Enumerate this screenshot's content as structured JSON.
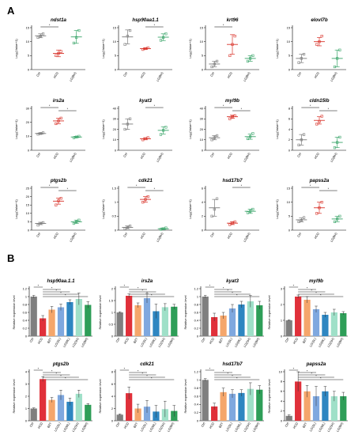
{
  "figure": {
    "panel_a_label": "A",
    "panel_b_label": "B"
  },
  "chart_data": [
    {
      "type": "scatter",
      "panel": "A",
      "title": "ndst1a",
      "ylabel": "Log₂(Value+1)",
      "categories": [
        "Ctrl",
        "HCD",
        "LG(BH)"
      ],
      "ylim": [
        0,
        15
      ],
      "yticks": [
        0,
        5,
        10,
        15
      ],
      "colors": [
        "#7a7a7a",
        "#d9342b",
        "#3aa56a"
      ],
      "points": [
        [
          11.5,
          12,
          12.8
        ],
        [
          5,
          5.8,
          6.5
        ],
        [
          9.5,
          11.5,
          14
        ]
      ],
      "means": [
        12.1,
        5.8,
        11.7
      ],
      "errors": [
        0.7,
        1.2,
        2.3
      ],
      "significance": [
        {
          "from": 0,
          "to": 1,
          "label": "*"
        }
      ]
    },
    {
      "type": "scatter",
      "panel": "A",
      "title": "hsp90aa1.1",
      "ylabel": "Log₂(Value+1)",
      "categories": [
        "Ctrl",
        "HCD",
        "LG(BH)"
      ],
      "ylim": [
        0,
        15
      ],
      "yticks": [
        0,
        5,
        10,
        15
      ],
      "colors": [
        "#7a7a7a",
        "#d9342b",
        "#3aa56a"
      ],
      "points": [
        [
          9,
          12,
          14
        ],
        [
          7.2,
          7.5,
          7.8
        ],
        [
          10.5,
          11.5,
          12.8
        ]
      ],
      "means": [
        11.7,
        7.5,
        11.6
      ],
      "errors": [
        2.5,
        0.3,
        1.2
      ],
      "significance": [
        {
          "from": 1,
          "to": 2,
          "label": "*"
        }
      ]
    },
    {
      "type": "scatter",
      "panel": "A",
      "title": "krt96",
      "ylabel": "Log₂(Value+1)",
      "categories": [
        "Ctrl",
        "HCD",
        "LG(BH)"
      ],
      "ylim": [
        0,
        15
      ],
      "yticks": [
        0,
        5,
        10,
        15
      ],
      "colors": [
        "#7a7a7a",
        "#d9342b",
        "#3aa56a"
      ],
      "points": [
        [
          1,
          2,
          3
        ],
        [
          5,
          9,
          12
        ],
        [
          3,
          4,
          5
        ]
      ],
      "means": [
        2,
        9,
        4
      ],
      "errors": [
        1,
        3.5,
        1
      ],
      "significance": [
        {
          "from": 0,
          "to": 1,
          "label": "*"
        }
      ]
    },
    {
      "type": "scatter",
      "panel": "A",
      "title": "elovl7b",
      "ylabel": "Log₂(Value+1)",
      "categories": [
        "Ctrl",
        "HCD",
        "LG(BH)"
      ],
      "ylim": [
        0,
        15
      ],
      "yticks": [
        0,
        5,
        10,
        15
      ],
      "colors": [
        "#7a7a7a",
        "#d9342b",
        "#3aa56a"
      ],
      "points": [
        [
          2.5,
          4,
          5.5
        ],
        [
          9,
          10,
          12
        ],
        [
          1,
          4,
          7
        ]
      ],
      "means": [
        4,
        10,
        4
      ],
      "errors": [
        1.5,
        1.5,
        3
      ],
      "significance": []
    },
    {
      "type": "scatter",
      "panel": "A",
      "title": "irs2a",
      "ylabel": "Log₂(Value+1)",
      "categories": [
        "Ctrl",
        "HCD",
        "LG(BH)"
      ],
      "ylim": [
        0,
        30
      ],
      "yticks": [
        0,
        10,
        20,
        30
      ],
      "colors": [
        "#7a7a7a",
        "#d9342b",
        "#3aa56a"
      ],
      "points": [
        [
          11.5,
          12,
          12.5
        ],
        [
          19,
          21,
          23
        ],
        [
          9,
          9.5,
          10
        ]
      ],
      "means": [
        12,
        21,
        9.5
      ],
      "errors": [
        0.5,
        2,
        0.5
      ],
      "significance": [
        {
          "from": 0,
          "to": 1,
          "label": "*"
        },
        {
          "from": 1,
          "to": 2,
          "label": "*"
        }
      ]
    },
    {
      "type": "scatter",
      "panel": "A",
      "title": "kyat3",
      "ylabel": "Log₂(Value+1)",
      "categories": [
        "Ctrl",
        "HCD",
        "LG(BH)"
      ],
      "ylim": [
        0,
        40
      ],
      "yticks": [
        0,
        10,
        20,
        30,
        40
      ],
      "colors": [
        "#7a7a7a",
        "#d9342b",
        "#3aa56a"
      ],
      "points": [
        [
          20,
          25,
          30
        ],
        [
          10,
          11,
          12
        ],
        [
          15,
          19,
          22
        ]
      ],
      "means": [
        25,
        11,
        19
      ],
      "errors": [
        5,
        1,
        3.5
      ],
      "significance": [
        {
          "from": 1,
          "to": 2,
          "label": "*"
        }
      ]
    },
    {
      "type": "scatter",
      "panel": "A",
      "title": "myl9b",
      "ylabel": "Log₂(Value+1)",
      "categories": [
        "Ctrl",
        "HCD",
        "LG(BH)"
      ],
      "ylim": [
        0,
        40
      ],
      "yticks": [
        0,
        10,
        20,
        30,
        40
      ],
      "colors": [
        "#7a7a7a",
        "#d9342b",
        "#3aa56a"
      ],
      "points": [
        [
          10,
          12,
          14
        ],
        [
          30,
          32,
          33
        ],
        [
          11,
          13,
          16
        ]
      ],
      "means": [
        12,
        32,
        13
      ],
      "errors": [
        2,
        1.5,
        2.5
      ],
      "significance": [
        {
          "from": 0,
          "to": 1,
          "label": "*"
        },
        {
          "from": 1,
          "to": 2,
          "label": "*"
        }
      ]
    },
    {
      "type": "scatter",
      "panel": "A",
      "title": "cldn15lb",
      "ylabel": "Log₂(Value+1)",
      "categories": [
        "Ctrl",
        "HCD",
        "LG(BH)"
      ],
      "ylim": [
        0,
        8
      ],
      "yticks": [
        0,
        2,
        4,
        6,
        8
      ],
      "colors": [
        "#7a7a7a",
        "#d9342b",
        "#3aa56a"
      ],
      "points": [
        [
          1,
          2,
          3
        ],
        [
          5,
          5.5,
          6.5
        ],
        [
          0.5,
          1.5,
          2.5
        ]
      ],
      "means": [
        2,
        5.7,
        1.5
      ],
      "errors": [
        1,
        0.7,
        1
      ],
      "significance": [
        {
          "from": 0,
          "to": 1,
          "label": "*"
        },
        {
          "from": 1,
          "to": 2,
          "label": "*"
        }
      ]
    },
    {
      "type": "scatter",
      "panel": "A",
      "title": "ptgs2b",
      "ylabel": "Log₂(Value+1)",
      "categories": [
        "Ctrl",
        "HCD",
        "LG(BH)"
      ],
      "ylim": [
        0,
        25
      ],
      "yticks": [
        0,
        5,
        10,
        15,
        20,
        25
      ],
      "colors": [
        "#7a7a7a",
        "#d9342b",
        "#3aa56a"
      ],
      "points": [
        [
          3,
          4,
          4.5
        ],
        [
          15,
          17.5,
          19
        ],
        [
          4,
          5,
          6
        ]
      ],
      "means": [
        4,
        17.3,
        5
      ],
      "errors": [
        0.7,
        1.8,
        1
      ],
      "significance": [
        {
          "from": 0,
          "to": 1,
          "label": "*"
        },
        {
          "from": 1,
          "to": 2,
          "label": "*"
        }
      ]
    },
    {
      "type": "scatter",
      "panel": "A",
      "title": "cdk21",
      "ylabel": "Log₂(Value+1)",
      "categories": [
        "Ctrl",
        "HCD",
        "LG(BH)"
      ],
      "ylim": [
        0,
        1.5
      ],
      "yticks": [
        0,
        0.5,
        1.0,
        1.5
      ],
      "colors": [
        "#7a7a7a",
        "#d9342b",
        "#3aa56a"
      ],
      "points": [
        [
          0.05,
          0.1,
          0.15
        ],
        [
          1.0,
          1.1,
          1.2
        ],
        [
          0.03,
          0.05,
          0.08
        ]
      ],
      "means": [
        0.1,
        1.1,
        0.05
      ],
      "errors": [
        0.05,
        0.1,
        0.03
      ],
      "significance": [
        {
          "from": 0,
          "to": 1,
          "label": "*"
        },
        {
          "from": 1,
          "to": 2,
          "label": "*"
        }
      ]
    },
    {
      "type": "scatter",
      "panel": "A",
      "title": "hsd17b7",
      "ylabel": "Log₂(Value+1)",
      "categories": [
        "Ctrl",
        "HCD",
        "LG(BH)"
      ],
      "ylim": [
        0,
        6
      ],
      "yticks": [
        0,
        2,
        4,
        6
      ],
      "colors": [
        "#7a7a7a",
        "#d9342b",
        "#3aa56a"
      ],
      "points": [
        [
          2,
          3,
          4.5
        ],
        [
          0.8,
          1,
          1.2
        ],
        [
          2.5,
          2.7,
          3
        ]
      ],
      "means": [
        3.2,
        1,
        2.7
      ],
      "errors": [
        1.2,
        0.2,
        0.3
      ],
      "significance": [
        {
          "from": 1,
          "to": 2,
          "label": "*"
        }
      ]
    },
    {
      "type": "scatter",
      "panel": "A",
      "title": "papss2a",
      "ylabel": "Log₂(Value+1)",
      "categories": [
        "Ctrl",
        "HCD",
        "LG(BH)"
      ],
      "ylim": [
        0,
        15
      ],
      "yticks": [
        0,
        5,
        10,
        15
      ],
      "colors": [
        "#7a7a7a",
        "#d9342b",
        "#3aa56a"
      ],
      "points": [
        [
          3,
          3.5,
          4.5
        ],
        [
          6,
          8,
          10
        ],
        [
          3,
          4,
          5
        ]
      ],
      "means": [
        3.7,
        8,
        4
      ],
      "errors": [
        0.7,
        2,
        1
      ],
      "significance": [
        {
          "from": 0,
          "to": 1,
          "label": "*"
        },
        {
          "from": 1,
          "to": 2,
          "label": "*"
        }
      ]
    },
    {
      "type": "bar",
      "panel": "B",
      "title": "hsp90aa.1.1",
      "ylabel": "Relative expression level",
      "categories": [
        "Ctrl",
        "HCD",
        "BZT",
        "LG(SL)",
        "LG(ML)",
        "LG(SH)",
        "LG(BH)"
      ],
      "ylim": [
        0,
        1.2
      ],
      "yticks": [
        0,
        0.2,
        0.4,
        0.6,
        0.8,
        1.0,
        1.2
      ],
      "colors": [
        "#7f7f7f",
        "#e0303a",
        "#f5a66b",
        "#7fa8df",
        "#2e86c1",
        "#9fe0c8",
        "#2e9e58"
      ],
      "values": [
        1.0,
        0.45,
        0.67,
        0.73,
        0.86,
        0.94,
        0.79
      ],
      "errors": [
        0.03,
        0.07,
        0.08,
        0.08,
        0.06,
        0.15,
        0.08
      ]
    },
    {
      "type": "bar",
      "panel": "B",
      "title": "irs2a",
      "ylabel": "Relative expression level",
      "categories": [
        "Ctrl",
        "HCD",
        "BZT",
        "LG(SL)",
        "LG(ML)",
        "LG(SH)",
        "LG(BH)"
      ],
      "ylim": [
        0,
        2.0
      ],
      "yticks": [
        0,
        0.5,
        1.0,
        1.5,
        2.0
      ],
      "colors": [
        "#7f7f7f",
        "#e0303a",
        "#f5a66b",
        "#7fa8df",
        "#2e86c1",
        "#9fe0c8",
        "#2e9e58"
      ],
      "values": [
        1.0,
        1.7,
        1.3,
        1.6,
        1.05,
        1.22,
        1.24
      ],
      "errors": [
        0.03,
        0.08,
        0.1,
        0.2,
        0.3,
        0.15,
        0.1
      ]
    },
    {
      "type": "bar",
      "panel": "B",
      "title": "kyat3",
      "ylabel": "Relative expression level",
      "categories": [
        "Ctrl",
        "HCD",
        "BZT",
        "LG(SL)",
        "LG(ML)",
        "LG(SH)",
        "LG(BH)"
      ],
      "ylim": [
        0,
        1.2
      ],
      "yticks": [
        0,
        0.2,
        0.4,
        0.6,
        0.8,
        1.0,
        1.2
      ],
      "colors": [
        "#7f7f7f",
        "#e0303a",
        "#f5a66b",
        "#7fa8df",
        "#2e86c1",
        "#9fe0c8",
        "#2e9e58"
      ],
      "values": [
        1.0,
        0.48,
        0.52,
        0.7,
        0.8,
        0.88,
        0.78
      ],
      "errors": [
        0.03,
        0.1,
        0.08,
        0.1,
        0.08,
        0.15,
        0.1
      ]
    },
    {
      "type": "bar",
      "panel": "B",
      "title": "myl9b",
      "ylabel": "Relative expression level",
      "categories": [
        "Ctrl",
        "HCD",
        "BZT",
        "LG(SL)",
        "LG(ML)",
        "LG(SH)",
        "LG(BH)"
      ],
      "ylim": [
        0,
        3
      ],
      "yticks": [
        0,
        1,
        2,
        3
      ],
      "colors": [
        "#7f7f7f",
        "#e0303a",
        "#f5a66b",
        "#7fa8df",
        "#2e86c1",
        "#9fe0c8",
        "#2e9e58"
      ],
      "values": [
        1.0,
        2.5,
        2.3,
        1.7,
        1.35,
        1.5,
        1.45
      ],
      "errors": [
        0.03,
        0.1,
        0.2,
        0.2,
        0.15,
        0.2,
        0.1
      ]
    },
    {
      "type": "bar",
      "panel": "B",
      "title": "ptgs2b",
      "ylabel": "Relative expression level",
      "categories": [
        "Ctrl",
        "HCD",
        "BZT",
        "LG(SL)",
        "LG(ML)",
        "LG(SH)",
        "LG(BH)"
      ],
      "ylim": [
        0,
        4
      ],
      "yticks": [
        0,
        1,
        2,
        3,
        4
      ],
      "colors": [
        "#7f7f7f",
        "#e0303a",
        "#f5a66b",
        "#7fa8df",
        "#2e86c1",
        "#9fe0c8",
        "#2e9e58"
      ],
      "values": [
        1.0,
        3.4,
        1.7,
        2.1,
        1.55,
        2.2,
        1.3
      ],
      "errors": [
        0.05,
        0.2,
        0.2,
        0.4,
        0.3,
        0.3,
        0.1
      ]
    },
    {
      "type": "bar",
      "panel": "B",
      "title": "cdk21",
      "ylabel": "Relative expression level",
      "categories": [
        "Ctrl",
        "HCD",
        "BZT",
        "LG(SL)",
        "LG(ML)",
        "LG(SH)",
        "LG(BH)"
      ],
      "ylim": [
        0,
        8
      ],
      "yticks": [
        0,
        2,
        4,
        6,
        8
      ],
      "colors": [
        "#7f7f7f",
        "#e0303a",
        "#f5a66b",
        "#7fa8df",
        "#2e86c1",
        "#9fe0c8",
        "#2e9e58"
      ],
      "values": [
        1.0,
        4.5,
        2.0,
        2.3,
        1.5,
        1.9,
        1.6
      ],
      "errors": [
        0.1,
        1.0,
        0.7,
        1.0,
        1.0,
        1.3,
        0.9
      ]
    },
    {
      "type": "bar",
      "panel": "B",
      "title": "hsd17b7",
      "ylabel": "Relative expression level",
      "categories": [
        "Ctrl",
        "HCD",
        "BZT",
        "LG(SL)",
        "LG(ML)",
        "LG(SH)",
        "LG(BH)"
      ],
      "ylim": [
        0,
        1.2
      ],
      "yticks": [
        0,
        0.2,
        0.4,
        0.6,
        0.8,
        1.0,
        1.2
      ],
      "colors": [
        "#7f7f7f",
        "#e0303a",
        "#f5a66b",
        "#7fa8df",
        "#2e86c1",
        "#9fe0c8",
        "#2e9e58"
      ],
      "values": [
        1.0,
        0.35,
        0.7,
        0.66,
        0.68,
        0.78,
        0.76
      ],
      "errors": [
        0.03,
        0.08,
        0.1,
        0.1,
        0.08,
        0.15,
        0.1
      ]
    },
    {
      "type": "bar",
      "panel": "B",
      "title": "papss2a",
      "ylabel": "Relative expression level",
      "categories": [
        "Ctrl",
        "HCD",
        "BZT",
        "LG(SL)",
        "LG(ML)",
        "LG(SH)",
        "LG(BH)"
      ],
      "ylim": [
        0,
        10
      ],
      "yticks": [
        0,
        2,
        4,
        6,
        8,
        10
      ],
      "colors": [
        "#7f7f7f",
        "#e0303a",
        "#f5a66b",
        "#7fa8df",
        "#2e86c1",
        "#9fe0c8",
        "#2e9e58"
      ],
      "values": [
        1.0,
        8.0,
        6.0,
        5.0,
        6.0,
        5.0,
        5.0
      ],
      "errors": [
        0.2,
        2.0,
        1.2,
        2.0,
        1.0,
        1.0,
        0.8
      ]
    }
  ]
}
